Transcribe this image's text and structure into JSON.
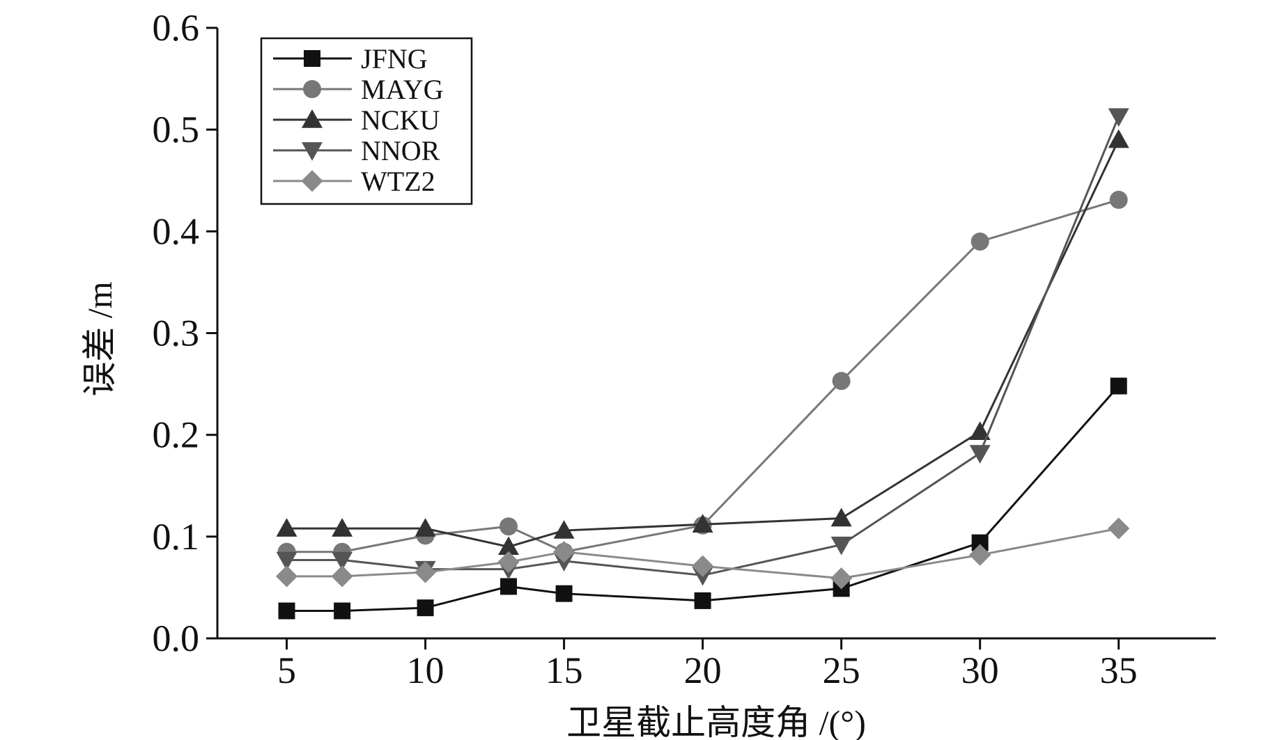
{
  "chart_data": {
    "type": "line",
    "title": "",
    "xlabel": "卫星截止高度角 /(°)",
    "ylabel": "误差 /m",
    "xlim": [
      2.5,
      38.5
    ],
    "ylim": [
      0,
      0.6
    ],
    "x_ticks": [
      5,
      10,
      15,
      20,
      25,
      30,
      35
    ],
    "y_ticks": [
      0.0,
      0.1,
      0.2,
      0.3,
      0.4,
      0.5,
      0.6
    ],
    "y_tick_labels": [
      "0.0",
      "0.1",
      "0.2",
      "0.3",
      "0.4",
      "0.5",
      "0.6"
    ],
    "grid": false,
    "legend_position": "top-left",
    "x": [
      5,
      7,
      10,
      13,
      15,
      20,
      25,
      30,
      35
    ],
    "series": [
      {
        "name": "JFNG",
        "marker": "square",
        "color": "#111111",
        "values": [
          0.027,
          0.027,
          0.03,
          0.051,
          0.044,
          0.037,
          0.049,
          0.094,
          0.248
        ]
      },
      {
        "name": "MAYG",
        "marker": "circle",
        "color": "#777777",
        "values": [
          0.085,
          0.085,
          0.101,
          0.11,
          0.085,
          0.111,
          0.253,
          0.39,
          0.431
        ]
      },
      {
        "name": "NCKU",
        "marker": "triangle-up",
        "color": "#333333",
        "values": [
          0.108,
          0.108,
          0.108,
          0.09,
          0.106,
          0.112,
          0.118,
          0.203,
          0.49
        ]
      },
      {
        "name": "NNOR",
        "marker": "triangle-down",
        "color": "#555555",
        "values": [
          0.077,
          0.077,
          0.068,
          0.068,
          0.076,
          0.062,
          0.092,
          0.182,
          0.513
        ]
      },
      {
        "name": "WTZ2",
        "marker": "diamond",
        "color": "#8a8a8a",
        "values": [
          0.061,
          0.061,
          0.065,
          0.075,
          0.085,
          0.071,
          0.059,
          0.082,
          0.108
        ]
      }
    ]
  }
}
